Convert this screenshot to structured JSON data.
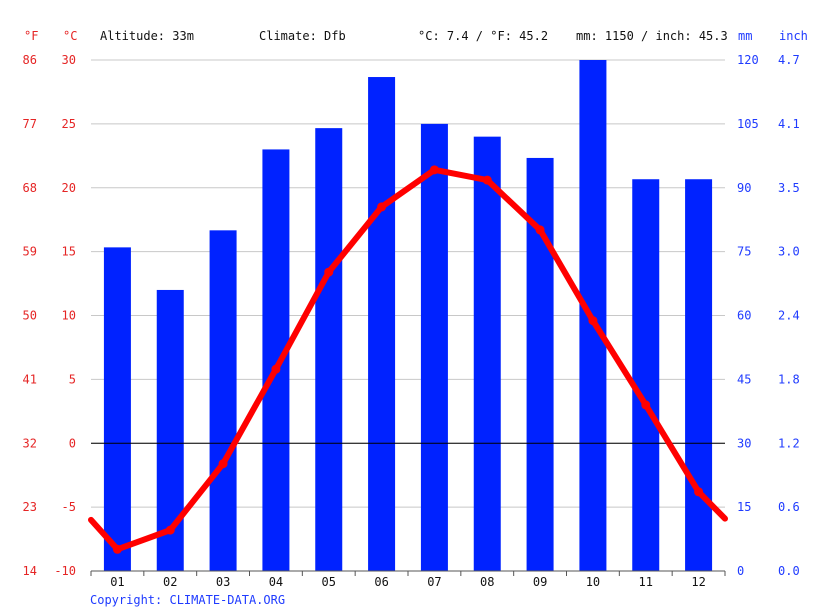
{
  "header": {
    "altitude": "Altitude: 33m",
    "climate": "Climate: Dfb",
    "avg_temp": "°C: 7.4 / °F: 45.2",
    "precip": "mm: 1150 / inch: 45.3"
  },
  "units": {
    "f": "°F",
    "c": "°C",
    "mm": "mm",
    "inch": "inch"
  },
  "copyright": "Copyright: CLIMATE-DATA.ORG",
  "colors": {
    "temp": "#ff0000",
    "precip": "#0022ff",
    "red_text": "#e52525",
    "blue_text": "#1f3bff"
  },
  "chart_data": {
    "type": "bar",
    "categories": [
      "01",
      "02",
      "03",
      "04",
      "05",
      "06",
      "07",
      "08",
      "09",
      "10",
      "11",
      "12"
    ],
    "series": [
      {
        "type": "bar",
        "axis": "mm",
        "values": [
          76,
          66,
          80,
          99,
          104,
          116,
          105,
          102,
          97,
          120,
          92,
          92
        ]
      },
      {
        "type": "line",
        "axis": "celsius",
        "values": [
          -8.3,
          -6.8,
          -1.6,
          5.8,
          13.4,
          18.5,
          21.4,
          20.6,
          16.7,
          9.6,
          3.0,
          -3.8
        ]
      }
    ],
    "temp_line_edges": {
      "start": -6.0,
      "end": -5.9
    },
    "axes": {
      "celsius": {
        "range": [
          -10,
          30
        ],
        "ticks": [
          "-10",
          "-5",
          "0",
          "5",
          "10",
          "15",
          "20",
          "25",
          "30"
        ]
      },
      "fahrenheit": {
        "ticks": [
          "14",
          "23",
          "32",
          "41",
          "50",
          "59",
          "68",
          "77",
          "86"
        ]
      },
      "mm": {
        "range": [
          0,
          120
        ],
        "ticks": [
          "0",
          "15",
          "30",
          "45",
          "60",
          "75",
          "90",
          "105",
          "120"
        ]
      },
      "inch": {
        "ticks": [
          "0.0",
          "0.6",
          "1.2",
          "1.8",
          "2.4",
          "3.0",
          "3.5",
          "4.1",
          "4.7"
        ]
      }
    },
    "grid": true
  }
}
